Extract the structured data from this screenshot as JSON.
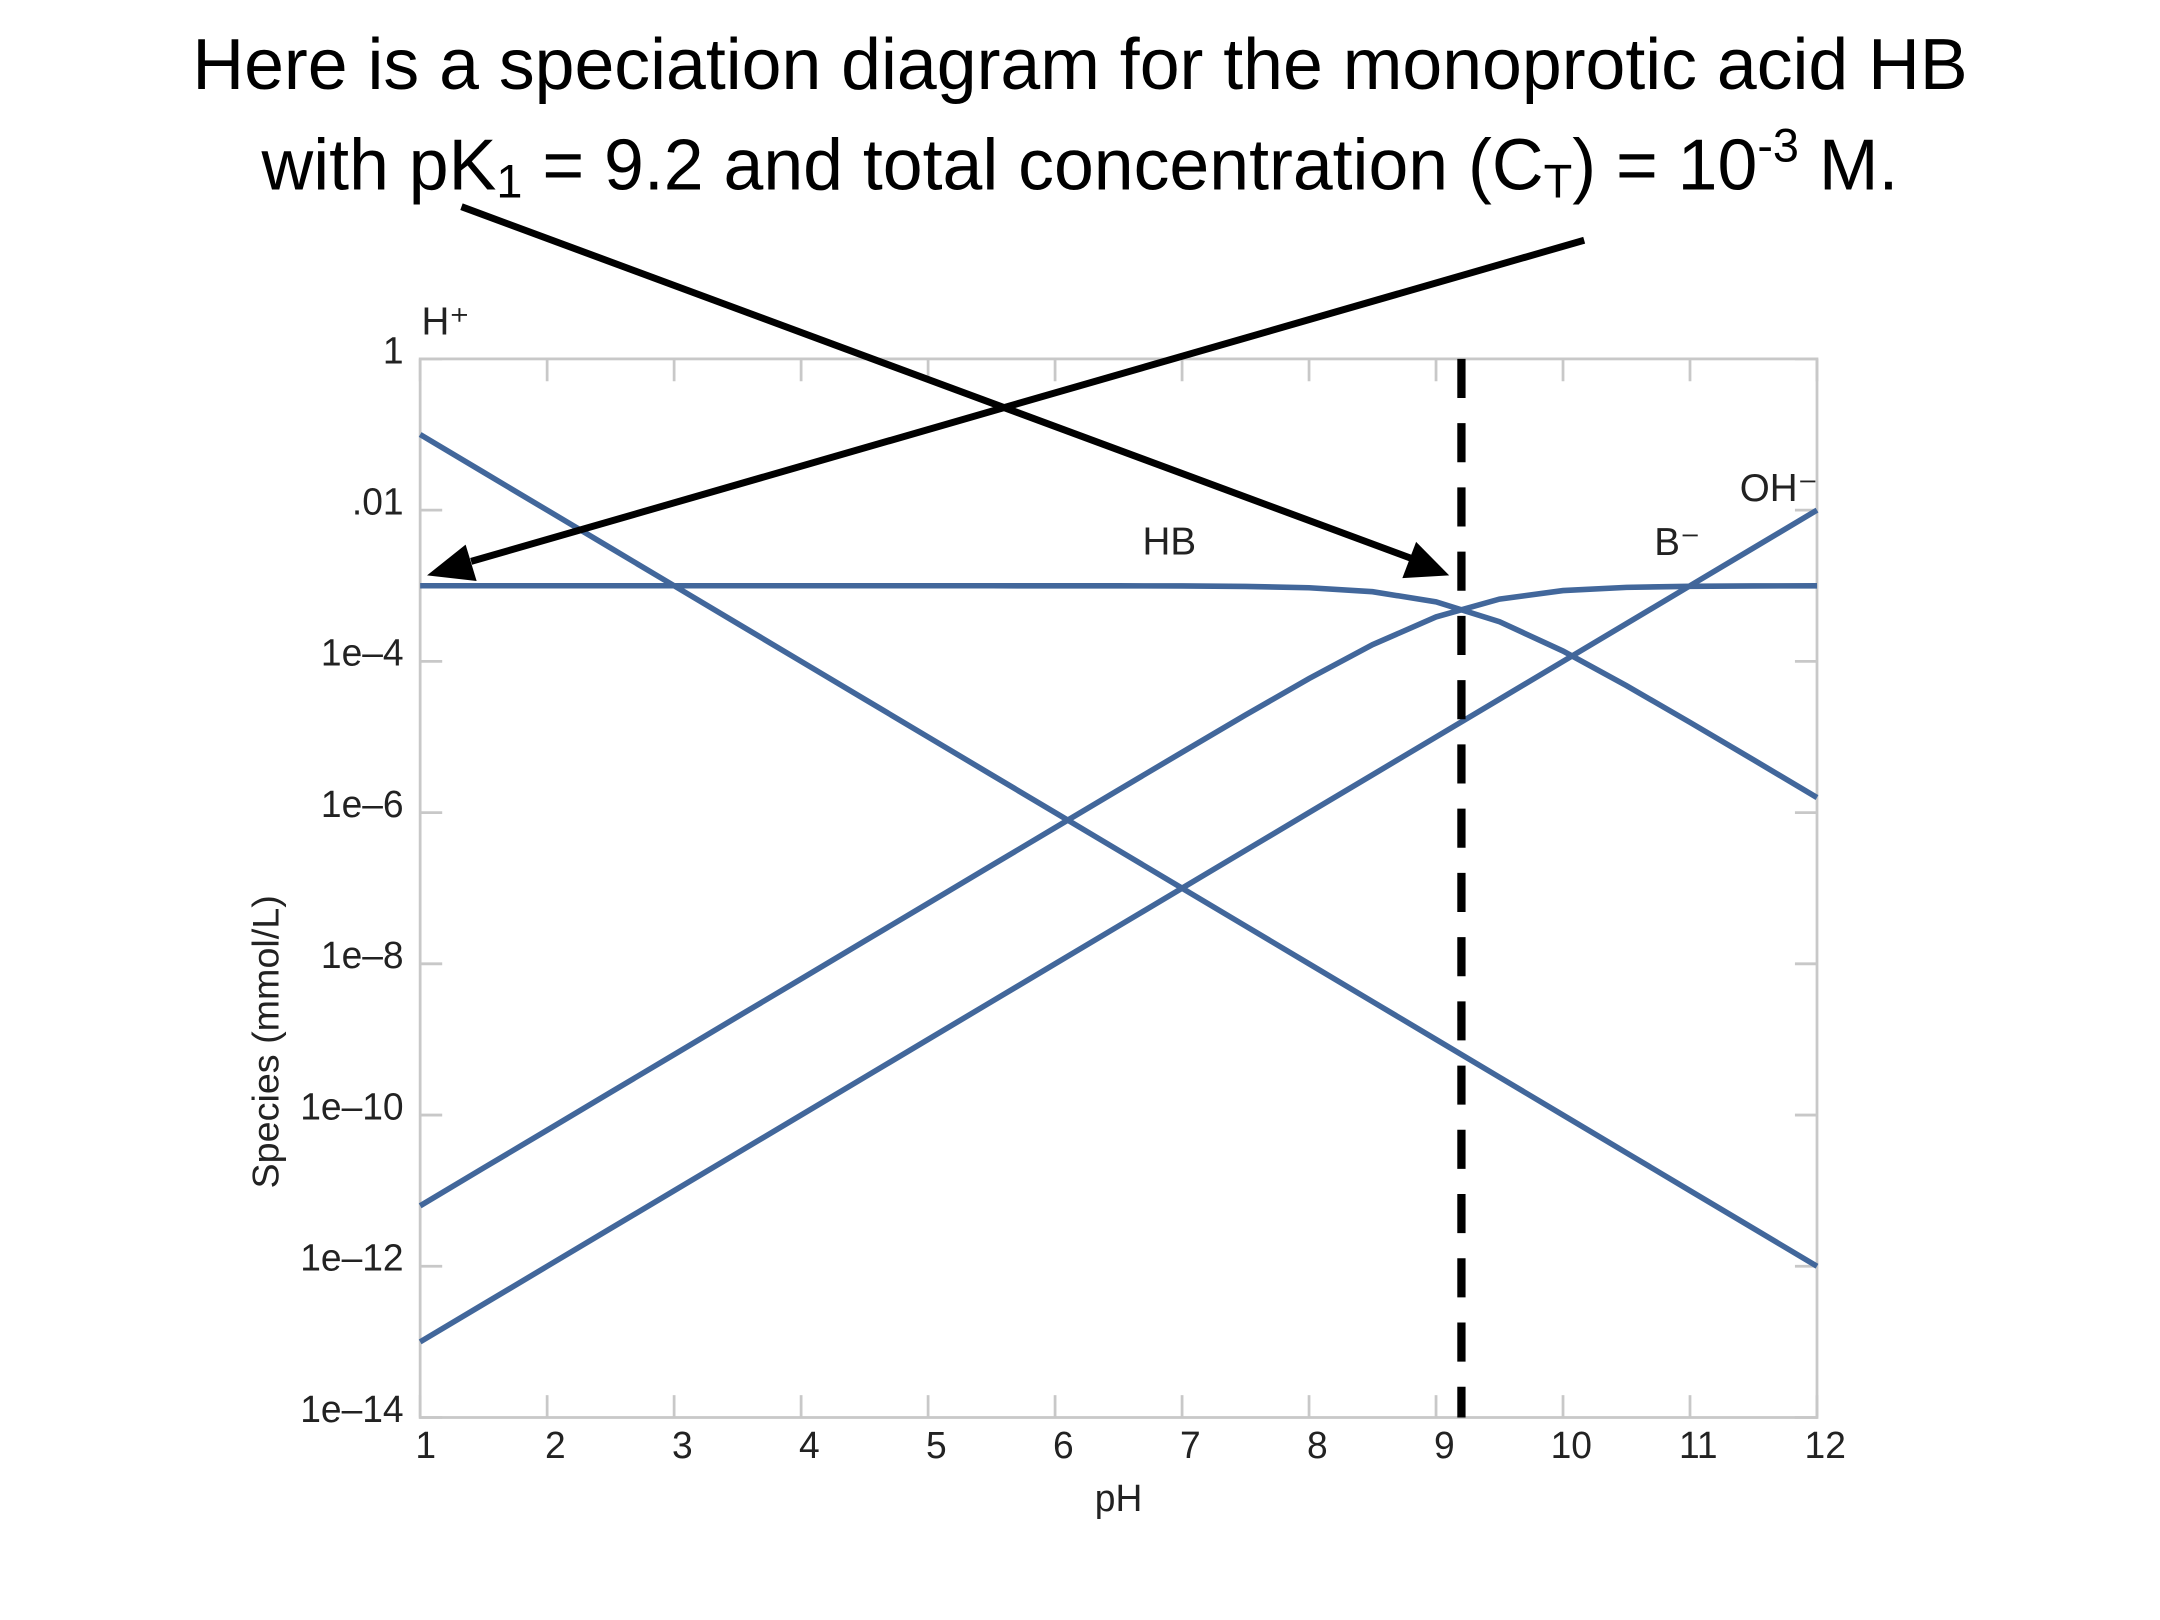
{
  "chart_data": {
    "type": "line",
    "title_lines": [
      [
        "Here is a speciation diagram for the monoprotic acid HB"
      ],
      [
        "with pK",
        "1",
        " = 9.2 and total concentration (C",
        "T",
        ") = 10",
        "-3",
        " M."
      ]
    ],
    "xlabel": "pH",
    "ylabel": "Species (mmol/L)",
    "x": [
      1,
      1.5,
      2,
      2.5,
      3,
      3.5,
      4,
      4.5,
      5,
      5.5,
      6,
      6.5,
      7,
      7.5,
      8,
      8.5,
      9,
      9.5,
      10,
      10.5,
      11,
      11.5,
      12
    ],
    "series": [
      {
        "name": "H⁺",
        "color": "#42679b",
        "label_at": 1.2,
        "values": [
          0.1,
          0.0316228,
          0.01,
          0.00316228,
          0.001,
          0.000316228,
          0.0001,
          3.16228e-05,
          1e-05,
          3.16228e-06,
          1e-06,
          3.16228e-07,
          1e-07,
          3.16228e-08,
          1e-08,
          3.16228e-09,
          1e-09,
          3.16228e-10,
          1e-10,
          3.16228e-11,
          1e-11,
          3.16228e-12,
          1e-12
        ]
      },
      {
        "name": "HB",
        "color": "#42679b",
        "label_at": 6.9,
        "values": [
          0.001,
          0.001,
          0.001,
          0.001,
          0.001,
          0.001,
          0.001,
          0.001,
          0.001,
          0.0009998,
          0.000999,
          0.000998,
          0.000994,
          0.00098,
          0.000941,
          0.000834,
          0.000613,
          0.000334,
          0.000137,
          4.77e-05,
          1.56e-05,
          4.99e-06,
          1.58e-06
        ]
      },
      {
        "name": "B⁻",
        "color": "#42679b",
        "label_at": 10.9,
        "values": [
          6.31e-12,
          2e-11,
          6.31e-11,
          2e-10,
          6.31e-10,
          2e-09,
          6.31e-09,
          2e-08,
          6.31e-08,
          2e-07,
          6.31e-07,
          1.995e-06,
          6.27e-06,
          1.956e-05,
          5.93e-05,
          0.0001663,
          0.000387,
          0.000666,
          0.000863,
          0.000952,
          0.000984,
          0.000995,
          0.000998
        ]
      },
      {
        "name": "OH⁻",
        "color": "#42679b",
        "label_at": 11.7,
        "values": [
          1e-13,
          3.16228e-13,
          1e-12,
          3.16228e-12,
          1e-11,
          3.16228e-11,
          1e-10,
          3.16228e-10,
          1e-09,
          3.16228e-09,
          1e-08,
          3.16228e-08,
          1e-07,
          3.16228e-07,
          1e-06,
          3.16228e-06,
          1e-05,
          3.16228e-05,
          0.0001,
          0.000316228,
          0.001,
          0.00316228,
          0.01
        ]
      }
    ],
    "vline": 9.2,
    "xlim": [
      1,
      12
    ],
    "xticks": [
      1,
      2,
      3,
      4,
      5,
      6,
      7,
      8,
      9,
      10,
      11,
      12
    ],
    "ylim": [
      1e-14,
      1
    ],
    "yticks": [
      {
        "value": 1e-14,
        "label": "1e–14"
      },
      {
        "value": 1e-12,
        "label": "1e–12"
      },
      {
        "value": 1e-10,
        "label": "1e–10"
      },
      {
        "value": 1e-08,
        "label": "1e–8"
      },
      {
        "value": 1e-06,
        "label": "1e–6"
      },
      {
        "value": 0.0001,
        "label": "1e–4"
      },
      {
        "value": 0.01,
        "label": ".01"
      },
      1
    ],
    "log_y": true,
    "grid": false
  }
}
